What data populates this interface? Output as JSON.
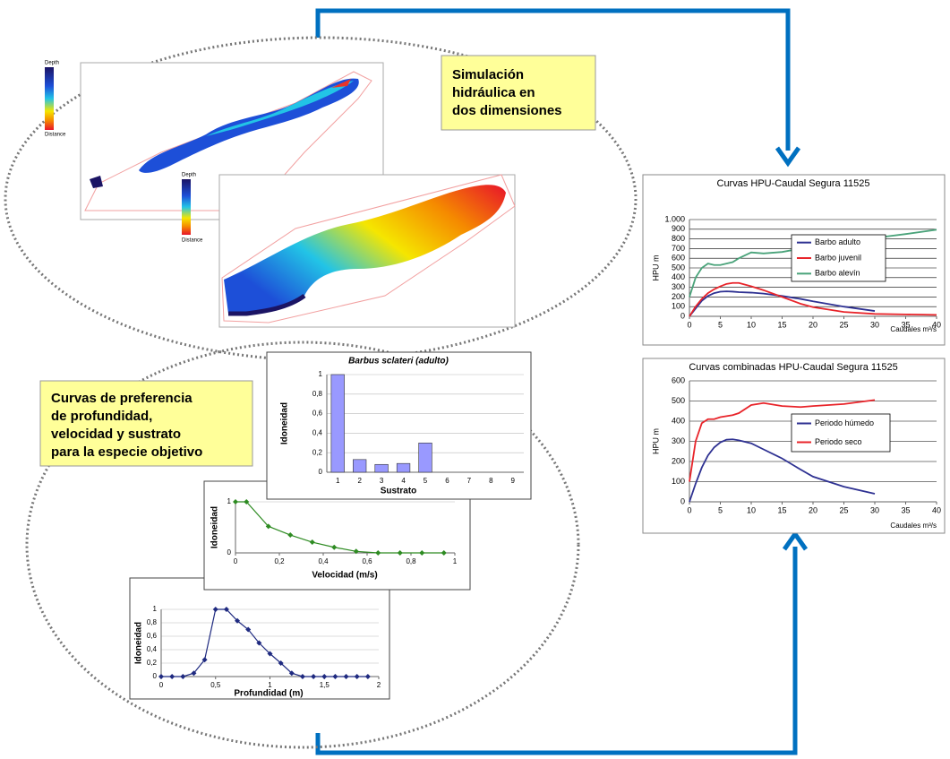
{
  "callouts": [
    {
      "lines": [
        "Simulación",
        "hidráulica en",
        "dos dimensiones"
      ]
    },
    {
      "lines": [
        "Curvas de preferencia",
        "de profundidad,",
        "velocidad y sustrato",
        "para la especie objetivo"
      ]
    }
  ],
  "maps": [
    {
      "legend_title": "Depth",
      "scale_title": "Distance"
    },
    {
      "legend_title": "Depth",
      "scale_title": "Distance"
    }
  ],
  "chart_data": [
    {
      "type": "line",
      "title": "Curvas HPU-Caudal Segura 11525",
      "y_label": "HPU m",
      "x_label": "Caudales m³/s",
      "x": [
        0,
        1,
        2,
        3,
        4,
        5,
        6,
        7,
        8,
        10,
        12,
        15,
        18,
        20,
        25,
        30,
        35,
        40
      ],
      "series": [
        {
          "name": "Barbo adulto",
          "color": "#2e3192",
          "values": [
            0,
            80,
            160,
            210,
            240,
            255,
            258,
            255,
            250,
            245,
            235,
            210,
            180,
            155,
            100,
            55,
            null,
            null
          ]
        },
        {
          "name": "Barbo juvenil",
          "color": "#e8242a",
          "values": [
            0,
            100,
            180,
            240,
            280,
            310,
            335,
            345,
            345,
            310,
            270,
            200,
            130,
            95,
            45,
            25,
            20,
            15
          ]
        },
        {
          "name": "Barbo alevín",
          "color": "#4aa37a",
          "values": [
            200,
            400,
            500,
            545,
            530,
            530,
            545,
            560,
            600,
            660,
            650,
            665,
            700,
            720,
            760,
            810,
            850,
            895
          ]
        }
      ],
      "xlim": [
        0,
        40
      ],
      "xticks": [
        0,
        5,
        10,
        15,
        20,
        25,
        30,
        35,
        40
      ],
      "ylim": [
        0,
        1000
      ],
      "yticks": [
        0,
        100,
        200,
        300,
        400,
        500,
        600,
        700,
        800,
        900,
        {
          "value": 1000,
          "label": "1.000"
        }
      ],
      "grid": true,
      "legend": "right"
    },
    {
      "type": "line",
      "title": "Curvas combinadas HPU-Caudal Segura 11525",
      "y_label": "HPU m",
      "x_label": "Caudales m³/s",
      "x": [
        0,
        1,
        2,
        3,
        4,
        5,
        6,
        7,
        8,
        10,
        12,
        15,
        18,
        20,
        25,
        30
      ],
      "series": [
        {
          "name": "Periodo húmedo",
          "color": "#2e3192",
          "values": [
            0,
            90,
            170,
            230,
            270,
            295,
            308,
            310,
            305,
            290,
            260,
            215,
            160,
            125,
            75,
            40
          ]
        },
        {
          "name": "Periodo seco",
          "color": "#e8242a",
          "values": [
            100,
            300,
            390,
            410,
            410,
            420,
            425,
            430,
            440,
            480,
            490,
            475,
            470,
            475,
            485,
            505
          ]
        }
      ],
      "xlim": [
        0,
        40
      ],
      "xticks": [
        0,
        5,
        10,
        15,
        20,
        25,
        30,
        35,
        40
      ],
      "ylim": [
        0,
        600
      ],
      "yticks": [
        0,
        100,
        200,
        300,
        400,
        500,
        600
      ],
      "grid": true,
      "legend": "right"
    },
    {
      "type": "bar",
      "title": "Barbus sclateri (adulto)",
      "y_label": "Idoneidad",
      "x_label": "Sustrato",
      "categories": [
        "1",
        "2",
        "3",
        "4",
        "5",
        "6",
        "7",
        "8",
        "9"
      ],
      "values": [
        1,
        0.13,
        0.08,
        0.09,
        0.3,
        0,
        0,
        0,
        0
      ],
      "color": "#9999ff",
      "ylim": [
        0,
        1
      ],
      "yticks": [
        0,
        {
          "value": 0.2,
          "label": "0,2"
        },
        {
          "value": 0.4,
          "label": "0,4"
        },
        {
          "value": 0.6,
          "label": "0,6"
        },
        {
          "value": 0.8,
          "label": "0,8"
        },
        1
      ],
      "grid": true
    },
    {
      "type": "line",
      "y_label": "Idoneidad",
      "x_label": "Velocidad (m/s)",
      "x": [
        0,
        0.05,
        0.15,
        0.25,
        0.35,
        0.45,
        0.55,
        0.65,
        0.75,
        0.85,
        0.95
      ],
      "values": [
        1,
        1,
        0.52,
        0.35,
        0.21,
        0.11,
        0.03,
        0,
        0,
        0,
        0
      ],
      "color": "#2e8b22",
      "xlim": [
        0,
        1
      ],
      "xticks": [
        0,
        {
          "value": 0.2,
          "label": "0,2"
        },
        {
          "value": 0.4,
          "label": "0,4"
        },
        {
          "value": 0.6,
          "label": "0,6"
        },
        {
          "value": 0.8,
          "label": "0,8"
        },
        1
      ],
      "ylim": [
        0,
        1
      ],
      "yticks": [
        0,
        1
      ],
      "grid": true,
      "markers": true
    },
    {
      "type": "line",
      "y_label": "Idoneidad",
      "x_label": "Profundidad (m)",
      "x": [
        0,
        0.1,
        0.2,
        0.3,
        0.4,
        0.5,
        0.6,
        0.7,
        0.8,
        0.9,
        1,
        1.1,
        1.2,
        1.3,
        1.4,
        1.5,
        1.6,
        1.7,
        1.8,
        1.9
      ],
      "values": [
        0,
        0,
        0,
        0.05,
        0.25,
        1,
        1,
        0.83,
        0.7,
        0.5,
        0.34,
        0.2,
        0.05,
        0,
        0,
        0,
        0,
        0,
        0,
        0
      ],
      "color": "#1f2a80",
      "xlim": [
        0,
        2
      ],
      "xticks": [
        0,
        {
          "value": 0.5,
          "label": "0,5"
        },
        1,
        {
          "value": 1.5,
          "label": "1,5"
        },
        2
      ],
      "ylim": [
        0,
        1
      ],
      "yticks": [
        0,
        {
          "value": 0.2,
          "label": "0,2"
        },
        {
          "value": 0.4,
          "label": "0,4"
        },
        {
          "value": 0.6,
          "label": "0,6"
        },
        {
          "value": 0.8,
          "label": "0,8"
        },
        1
      ],
      "grid": true,
      "markers": true
    }
  ]
}
